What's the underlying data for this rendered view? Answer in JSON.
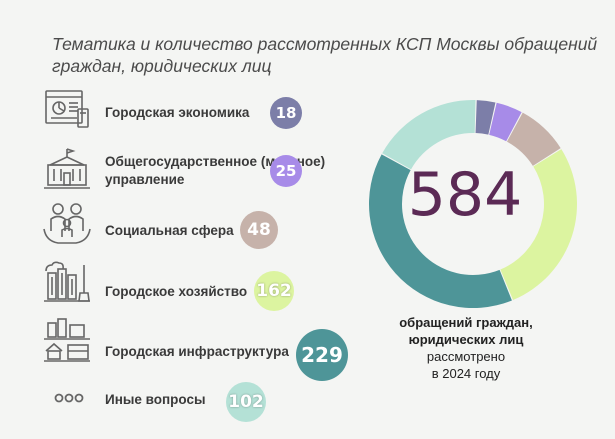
{
  "title": "Тематика и количество рассмотренных КСП Москвы обращений граждан, юридических лиц",
  "total": "584",
  "caption": {
    "line1": "обращений граждан,",
    "line2": "юридических лиц",
    "line3": "рассмотрено",
    "line4": "в 2024 году"
  },
  "categories": [
    {
      "label": "Городская экономика",
      "value": "18",
      "color": "#7c7ea8",
      "icon": "economy-icon"
    },
    {
      "label": "Общегосударственное (местное) управление",
      "value": "25",
      "color": "#a78be8",
      "icon": "government-building-icon"
    },
    {
      "label": "Социальная сфера",
      "value": "48",
      "color": "#c6b2aa",
      "icon": "family-icon"
    },
    {
      "label": "Городское хозяйство",
      "value": "162",
      "color": "#dcf4a0",
      "icon": "city-services-icon"
    },
    {
      "label": "Городская инфраструктура",
      "value": "229",
      "color": "#4e9598",
      "icon": "infrastructure-icon"
    },
    {
      "label": "Иные вопросы",
      "value": "102",
      "color": "#b4e1d6",
      "icon": "dots-icon"
    }
  ],
  "chart_data": {
    "type": "pie",
    "title": "Тематика и количество рассмотренных КСП Москвы обращений граждан, юридических лиц",
    "categories": [
      "Городская экономика",
      "Общегосударственное (местное) управление",
      "Социальная сфера",
      "Городское хозяйство",
      "Городская инфраструктура",
      "Иные вопросы"
    ],
    "values": [
      18,
      25,
      48,
      162,
      229,
      102
    ],
    "total": 584,
    "colors": [
      "#7c7ea8",
      "#a78be8",
      "#c6b2aa",
      "#dcf4a0",
      "#4e9598",
      "#b4e1d6"
    ],
    "donut": true
  }
}
